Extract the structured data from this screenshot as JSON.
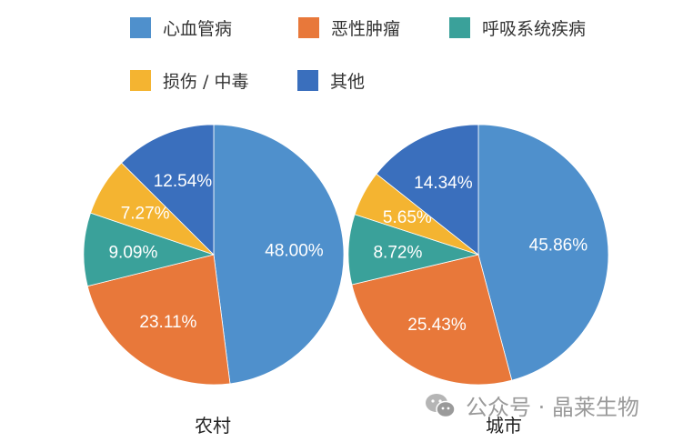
{
  "legend": {
    "items": [
      {
        "label": "心血管病",
        "color": "#4f90cc"
      },
      {
        "label": "恶性肿瘤",
        "color": "#e8783a"
      },
      {
        "label": "呼吸系统疾病",
        "color": "#3aa19a"
      },
      {
        "label": "损伤 / 中毒",
        "color": "#f4b431"
      },
      {
        "label": "其他",
        "color": "#3a6fbd"
      }
    ]
  },
  "pies": [
    {
      "title": "农村",
      "labels": [
        "48.00%",
        "23.11%",
        "9.09%",
        "7.27%",
        "12.54%"
      ]
    },
    {
      "title": "城市",
      "labels": [
        "45.86%",
        "25.43%",
        "8.72%",
        "5.65%",
        "14.34%"
      ]
    }
  ],
  "watermark": {
    "text": "公众号 · 晶莱生物"
  },
  "chart_data": [
    {
      "type": "pie",
      "title": "农村",
      "categories": [
        "心血管病",
        "恶性肿瘤",
        "呼吸系统疾病",
        "损伤 / 中毒",
        "其他"
      ],
      "values": [
        48.0,
        23.11,
        9.09,
        7.27,
        12.54
      ],
      "unit": "%",
      "colors": [
        "#4f90cc",
        "#e8783a",
        "#3aa19a",
        "#f4b431",
        "#3a6fbd"
      ],
      "start_angle": "12 o'clock, clockwise",
      "legend_position": "top"
    },
    {
      "type": "pie",
      "title": "城市",
      "categories": [
        "心血管病",
        "恶性肿瘤",
        "呼吸系统疾病",
        "损伤 / 中毒",
        "其他"
      ],
      "values": [
        45.86,
        25.43,
        8.72,
        5.65,
        14.34
      ],
      "unit": "%",
      "colors": [
        "#4f90cc",
        "#e8783a",
        "#3aa19a",
        "#f4b431",
        "#3a6fbd"
      ],
      "start_angle": "12 o'clock, clockwise",
      "legend_position": "top"
    }
  ]
}
